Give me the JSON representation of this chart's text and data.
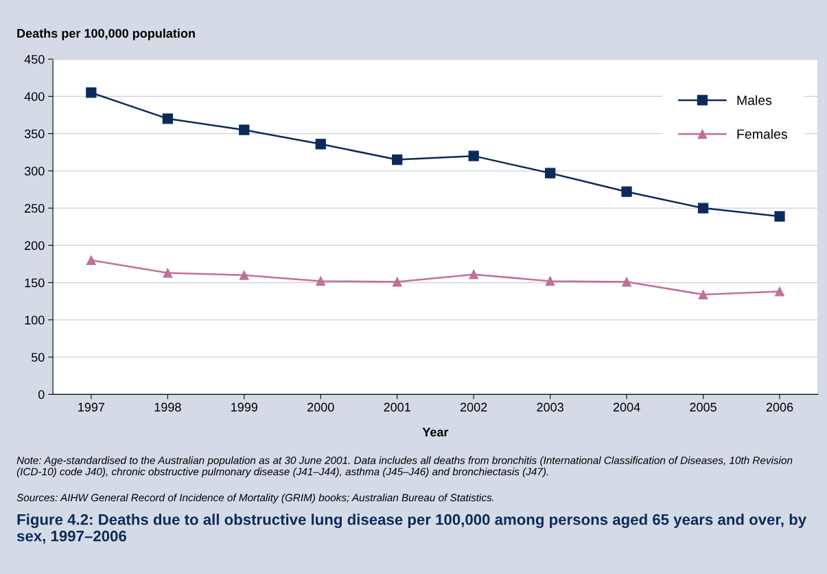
{
  "chart_data": {
    "type": "line",
    "title": "Figure 4.2: Deaths due to all obstructive lung disease per 100,000 among persons aged 65 years and over, by sex, 1997–2006",
    "ylabel": "Deaths per 100,000 population",
    "xlabel": "Year",
    "categories": [
      "1997",
      "1998",
      "1999",
      "2000",
      "2001",
      "2002",
      "2003",
      "2004",
      "2005",
      "2006"
    ],
    "series": [
      {
        "name": "Males",
        "color": "#0b2a5b",
        "marker": "square",
        "values": [
          405,
          370,
          355,
          336,
          315,
          320,
          297,
          272,
          250,
          239
        ]
      },
      {
        "name": "Females",
        "color": "#c0709b",
        "marker": "triangle",
        "values": [
          180,
          163,
          160,
          152,
          151,
          161,
          152,
          151,
          134,
          138
        ]
      }
    ],
    "ylim": [
      0,
      450
    ],
    "yticks": [
      0,
      50,
      100,
      150,
      200,
      250,
      300,
      350,
      400,
      450
    ],
    "grid": "y",
    "legend": "top right",
    "line_style": "solid",
    "annotations": [
      "Note: Age-standardised to the Australian population as at 30 June 2001. Data includes all deaths from bronchitis (International Classification of Diseases, 10th Revision (ICD-10) code J40), chronic obstructive pulmonary disease (J41–J44), asthma (J45–J46) and bronchiectasis (J47).",
      "Sources: AIHW General Record of Incidence of Mortality (GRIM) books; Australian Bureau of Statistics."
    ]
  }
}
